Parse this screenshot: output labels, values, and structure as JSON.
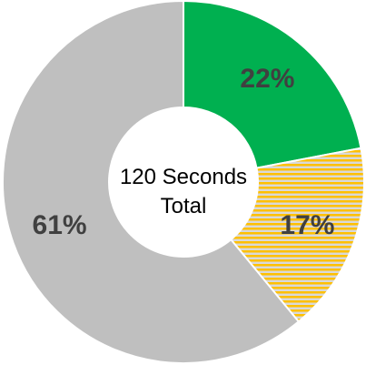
{
  "chart_data": {
    "type": "pie",
    "donut": true,
    "center_label": {
      "line1": "120 Seconds",
      "line2": "Total"
    },
    "slices": [
      {
        "value": 22,
        "label": "22%",
        "color": "#00b050",
        "pattern": "solid"
      },
      {
        "value": 17,
        "label": "17%",
        "color": "#ffc000",
        "pattern": "horizontal-stripes",
        "stripe_color": "#d9d9d9"
      },
      {
        "value": 61,
        "label": "61%",
        "color": "#bfbfbf",
        "pattern": "solid"
      }
    ],
    "start_angle_deg": 0,
    "direction": "clockwise",
    "legend": "none"
  }
}
